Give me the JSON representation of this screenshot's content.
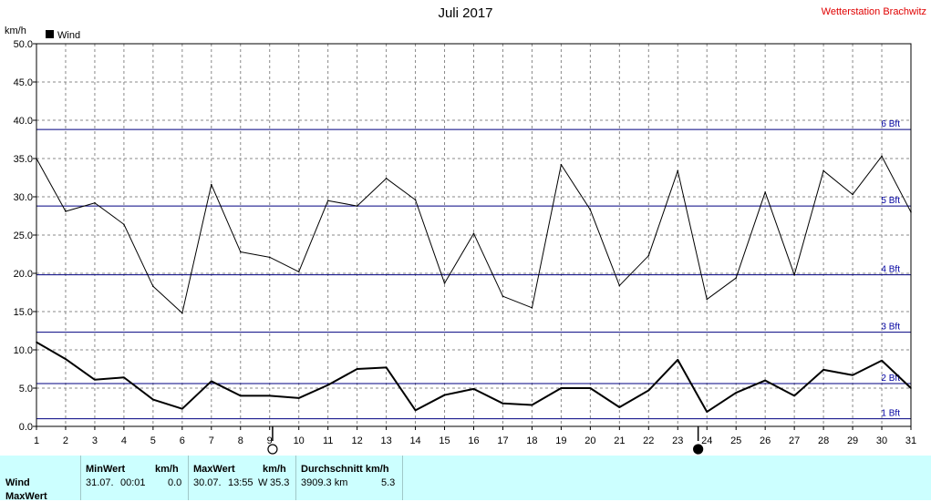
{
  "title": "Juli 2017",
  "station": "Wetterstation Brachwitz",
  "colors": {
    "grid_lines": "#888888",
    "bft_lines": "#000080",
    "bft_labels": "#0000a0",
    "panel_bg": "#ccffff",
    "station_text": "#e00000"
  },
  "chart_data": {
    "type": "line",
    "ylabel": "km/h",
    "ylim": [
      0,
      50
    ],
    "yticks": [
      "0.0",
      "5.0",
      "10.0",
      "15.0",
      "20.0",
      "25.0",
      "30.0",
      "35.0",
      "40.0",
      "45.0",
      "50.0"
    ],
    "x": [
      1,
      2,
      3,
      4,
      5,
      6,
      7,
      8,
      9,
      10,
      11,
      12,
      13,
      14,
      15,
      16,
      17,
      18,
      19,
      20,
      21,
      22,
      23,
      24,
      25,
      26,
      27,
      28,
      29,
      30,
      31
    ],
    "xticks": [
      "1",
      "2",
      "3",
      "4",
      "5",
      "6",
      "7",
      "8",
      "9",
      "10",
      "11",
      "12",
      "13",
      "14",
      "15",
      "16",
      "17",
      "18",
      "19",
      "20",
      "21",
      "22",
      "23",
      "24",
      "25",
      "26",
      "27",
      "28",
      "29",
      "30",
      "31"
    ],
    "legend": {
      "label": "Wind",
      "position": "top-left"
    },
    "grid": true,
    "series": [
      {
        "name": "Wind",
        "values": [
          11.0,
          8.8,
          6.1,
          6.4,
          3.5,
          2.3,
          5.9,
          4.0,
          4.0,
          3.7,
          5.4,
          7.5,
          7.7,
          2.1,
          4.1,
          4.9,
          3.0,
          2.8,
          5.0,
          5.0,
          2.5,
          4.7,
          8.7,
          1.9,
          4.4,
          6.0,
          4.0,
          7.4,
          6.7,
          8.6,
          5.0
        ],
        "stroke_width": "bold"
      },
      {
        "name": "MaxWert",
        "values": [
          35.0,
          28.1,
          29.2,
          26.4,
          18.3,
          14.8,
          31.6,
          22.8,
          22.1,
          20.2,
          29.5,
          28.8,
          32.4,
          29.6,
          18.7,
          25.2,
          17.0,
          15.5,
          34.2,
          28.3,
          18.4,
          22.3,
          33.4,
          16.6,
          19.4,
          30.6,
          19.8,
          33.4,
          30.3,
          35.3,
          28.0
        ],
        "stroke_width": "thin"
      }
    ],
    "reference_lines": [
      {
        "label": "1 Bft",
        "value": 1.0
      },
      {
        "label": "2 Bft",
        "value": 5.6
      },
      {
        "label": "3 Bft",
        "value": 12.3
      },
      {
        "label": "4 Bft",
        "value": 19.8
      },
      {
        "label": "5 Bft",
        "value": 28.8
      },
      {
        "label": "6 Bft",
        "value": 38.8
      }
    ],
    "moon_phases": [
      {
        "day": 9.1,
        "phase": "full"
      },
      {
        "day": 23.7,
        "phase": "new"
      }
    ]
  },
  "stats": {
    "rows": [
      "Wind",
      "MaxWert"
    ],
    "min": {
      "header": "MinWert",
      "unit": "km/h",
      "date": "31.07.",
      "time": "00:01",
      "value": "0.0"
    },
    "max": {
      "header": "MaxWert",
      "unit": "km/h",
      "date": "30.07.",
      "time": "13:55",
      "dir": "W",
      "value": "35.3"
    },
    "avg": {
      "header": "Durchschnitt km/h",
      "distance": "3909.3 km",
      "value": "5.3"
    }
  }
}
